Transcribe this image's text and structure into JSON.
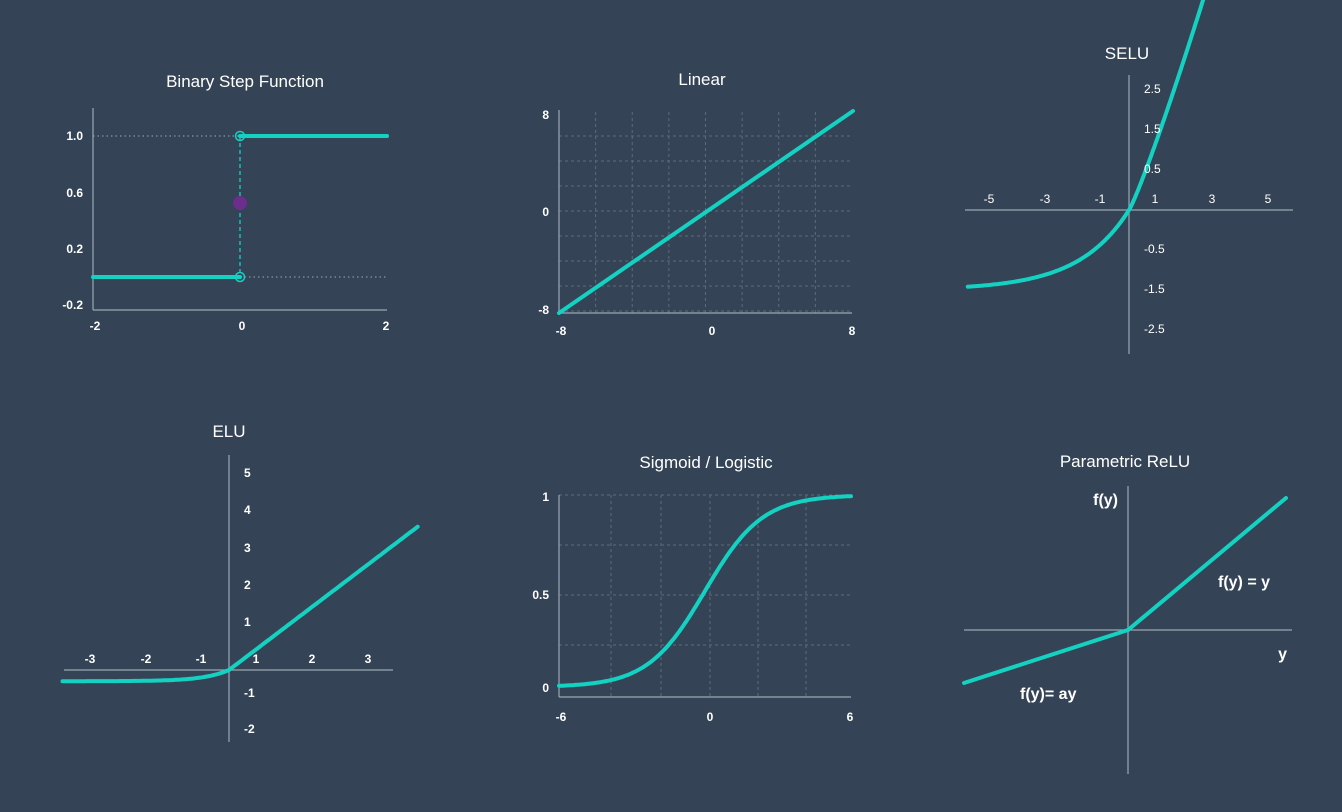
{
  "colors": {
    "background": "#344456",
    "curve": "#14d2c2",
    "axis": "#9aa7b4",
    "grid": "#5a6b7c",
    "midpoint": "#6c2d8c",
    "text": "#ffffff"
  },
  "chart_data": [
    {
      "id": "binary-step",
      "type": "line",
      "title": "Binary Step Function",
      "xlim": [
        -2,
        2
      ],
      "ylim": [
        -0.2,
        1.2
      ],
      "xticks": [
        -2,
        0,
        2
      ],
      "yticks": [
        "1.0",
        "0.6",
        "0.2",
        "-0.2"
      ],
      "ytick_values": [
        1.0,
        0.6,
        0.2,
        -0.2
      ],
      "series": [
        {
          "x": [
            -2,
            0
          ],
          "y": [
            0,
            0
          ]
        },
        {
          "x": [
            0,
            2
          ],
          "y": [
            1,
            1
          ]
        }
      ],
      "markers": [
        {
          "x": 0,
          "y": 0,
          "style": "open"
        },
        {
          "x": 0,
          "y": 1,
          "style": "open"
        },
        {
          "x": 0,
          "y": 0.5,
          "style": "filled"
        }
      ]
    },
    {
      "id": "linear",
      "type": "line",
      "title": "Linear",
      "xlim": [
        -8,
        8
      ],
      "ylim": [
        -8,
        8
      ],
      "xticks": [
        -8,
        0,
        8
      ],
      "yticks": [
        8,
        0,
        -8
      ],
      "grid": true,
      "series": [
        {
          "x": [
            -8,
            8
          ],
          "y": [
            -8,
            8
          ]
        }
      ]
    },
    {
      "id": "selu",
      "type": "line",
      "title": "SELU",
      "xlim": [
        -6,
        6
      ],
      "ylim": [
        -3.5,
        3.2
      ],
      "xticks": [
        -5,
        -3,
        -1,
        1,
        3,
        5
      ],
      "yticks": [
        2.5,
        1.5,
        0.5,
        -0.5,
        -1.5,
        -2.5
      ],
      "series": [
        {
          "function": "selu",
          "x_range": [
            -5.8,
            3.7
          ]
        }
      ]
    },
    {
      "id": "elu",
      "type": "line",
      "title": "ELU",
      "xlim": [
        -3,
        3
      ],
      "ylim": [
        -2,
        5
      ],
      "xticks": [
        -3,
        -2,
        -1,
        1,
        2,
        3
      ],
      "yticks": [
        5,
        4,
        3,
        2,
        1,
        -1,
        -2
      ],
      "series": [
        {
          "function": "elu",
          "x_range": [
            -3.0,
            3.4
          ]
        }
      ]
    },
    {
      "id": "sigmoid",
      "type": "line",
      "title": "Sigmoid / Logistic",
      "xlim": [
        -6,
        6
      ],
      "ylim": [
        0,
        1
      ],
      "xticks": [
        -6,
        0,
        6
      ],
      "yticks": [
        "1",
        "0.5",
        "0"
      ],
      "ytick_values": [
        1,
        0.5,
        0
      ],
      "grid": true,
      "series": [
        {
          "function": "sigmoid",
          "x_range": [
            -6,
            6
          ]
        }
      ]
    },
    {
      "id": "prelu",
      "type": "line",
      "title": "Parametric ReLU",
      "ylabel": "f(y)",
      "xlabel": "y",
      "annotations": [
        "f(y) = y",
        "f(y)= ay"
      ],
      "series": [
        {
          "x": [
            -1,
            0
          ],
          "y": [
            -0.35,
            0
          ]
        },
        {
          "x": [
            0,
            1
          ],
          "y": [
            0,
            0.8
          ]
        }
      ]
    }
  ]
}
